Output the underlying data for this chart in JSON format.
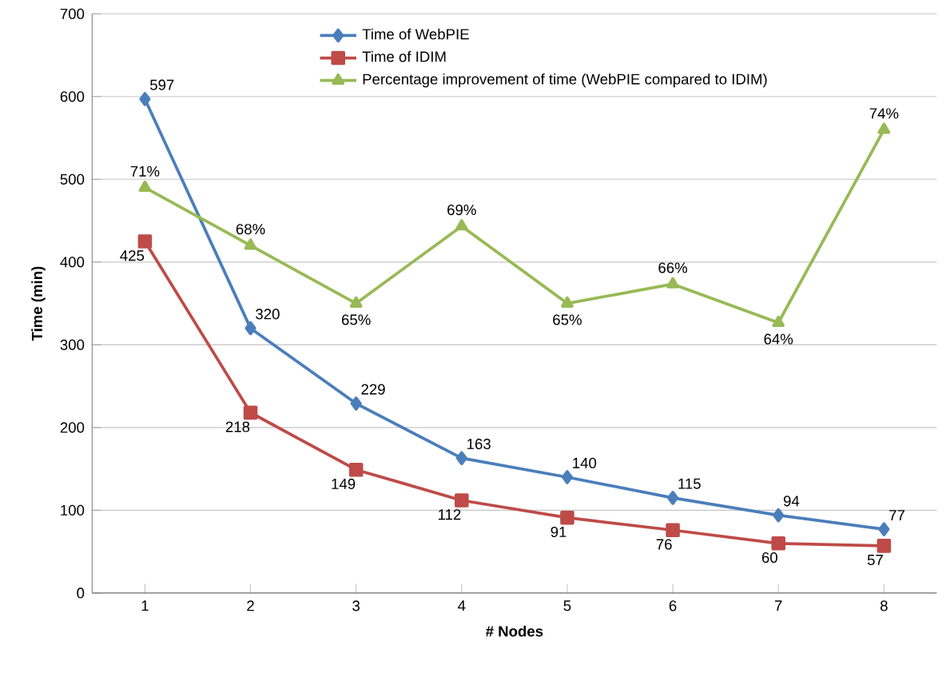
{
  "chart_data": {
    "type": "line",
    "xlabel": "# Nodes",
    "ylabel": "Time (min)",
    "categories": [
      "1",
      "2",
      "3",
      "4",
      "5",
      "6",
      "7",
      "8"
    ],
    "ylim": [
      0,
      700
    ],
    "yticks": [
      0,
      100,
      200,
      300,
      400,
      500,
      600,
      700
    ],
    "y2lim": [
      50,
      80
    ],
    "grid": "y",
    "legend": "top",
    "series": [
      {
        "name": "Time of WebPIE",
        "color": "#4a7ebb",
        "marker": "diamond",
        "values": [
          597,
          320,
          229,
          163,
          140,
          115,
          94,
          77
        ],
        "value_labels": [
          "597",
          "320",
          "229",
          "163",
          "140",
          "115",
          "94",
          "77"
        ]
      },
      {
        "name": "Time of IDIM",
        "color": "#be4b48",
        "marker": "square",
        "values": [
          425,
          218,
          149,
          112,
          91,
          76,
          60,
          57
        ],
        "value_labels": [
          "425",
          "218",
          "149",
          "112",
          "91",
          "76",
          "60",
          "57"
        ]
      },
      {
        "name": "Percentage improvement of time (WebPIE compared to IDIM)",
        "color": "#98b954",
        "marker": "triangle",
        "axis": "y2",
        "values": [
          71,
          68,
          65,
          69,
          65,
          66,
          64,
          74
        ],
        "value_labels": [
          "71%",
          "68%",
          "65%",
          "69%",
          "65%",
          "66%",
          "64%",
          "74%"
        ]
      }
    ]
  }
}
